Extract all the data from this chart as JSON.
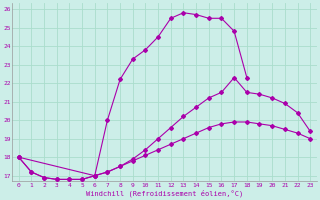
{
  "xlabel": "Windchill (Refroidissement éolien,°C)",
  "bg_color": "#cceee8",
  "grid_color": "#aaddcc",
  "line_color": "#aa00aa",
  "xlim": [
    -0.5,
    23.5
  ],
  "ylim": [
    16.7,
    26.3
  ],
  "yticks": [
    17,
    18,
    19,
    20,
    21,
    22,
    23,
    24,
    25,
    26
  ],
  "xticks": [
    0,
    1,
    2,
    3,
    4,
    5,
    6,
    7,
    8,
    9,
    10,
    11,
    12,
    13,
    14,
    15,
    16,
    17,
    18,
    19,
    20,
    21,
    22,
    23
  ],
  "series": [
    {
      "x": [
        0,
        1,
        2,
        3,
        4,
        5,
        6,
        7,
        8,
        9,
        10,
        11,
        12,
        13,
        14,
        15,
        16,
        17,
        18,
        19,
        20,
        21,
        22,
        23
      ],
      "y": [
        18.0,
        17.2,
        16.9,
        16.8,
        16.8,
        16.8,
        17.0,
        17.2,
        17.5,
        17.8,
        18.1,
        18.4,
        18.7,
        19.0,
        19.3,
        19.6,
        19.8,
        19.9,
        19.9,
        19.8,
        19.7,
        19.5,
        19.3,
        19.0
      ]
    },
    {
      "x": [
        0,
        1,
        2,
        3,
        4,
        5,
        6,
        7,
        8,
        9,
        10,
        11,
        12,
        13,
        14,
        15,
        16,
        17,
        18
      ],
      "y": [
        18.0,
        17.2,
        16.9,
        16.8,
        16.8,
        16.8,
        17.0,
        20.0,
        22.2,
        23.3,
        23.8,
        24.5,
        25.5,
        25.8,
        25.7,
        25.5,
        25.5,
        24.8,
        22.3
      ]
    },
    {
      "x": [
        0,
        6,
        7,
        8,
        9,
        10,
        11,
        12,
        13,
        14,
        15,
        16,
        17,
        18,
        19,
        20,
        21,
        22,
        23
      ],
      "y": [
        18.0,
        17.0,
        17.2,
        17.5,
        17.9,
        18.4,
        19.0,
        19.6,
        20.2,
        20.7,
        21.2,
        21.5,
        22.3,
        21.5,
        21.4,
        21.2,
        20.9,
        20.4,
        19.4
      ]
    }
  ]
}
